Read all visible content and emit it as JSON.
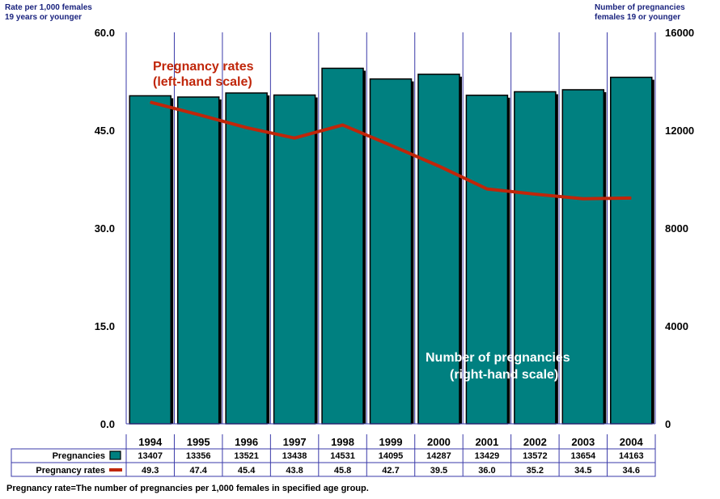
{
  "chart_data": {
    "type": "bar",
    "categories": [
      "1994",
      "1995",
      "1996",
      "1997",
      "1998",
      "1999",
      "2000",
      "2001",
      "2002",
      "2003",
      "2004"
    ],
    "series": [
      {
        "name": "Pregnancies",
        "type": "bar",
        "axis": "right",
        "values": [
          13407,
          13356,
          13521,
          13438,
          14531,
          14095,
          14287,
          13429,
          13572,
          13654,
          14163
        ],
        "color": "#008080"
      },
      {
        "name": "Pregnancy rates",
        "type": "line",
        "axis": "left",
        "values": [
          49.3,
          47.4,
          45.4,
          43.8,
          45.8,
          42.7,
          39.5,
          36.0,
          35.2,
          34.5,
          34.6
        ],
        "color": "#c0260a"
      }
    ],
    "left_axis": {
      "title_line1": "Rate per 1,000 females",
      "title_line2": "19 years or younger",
      "ylim": [
        0,
        60
      ],
      "ticks": [
        "0.0",
        "15.0",
        "30.0",
        "45.0",
        "60.0"
      ],
      "tick_values": [
        0,
        15,
        30,
        45,
        60
      ]
    },
    "right_axis": {
      "title_line1": "Number of pregnancies",
      "title_line2": "females 19 or younger",
      "ylim": [
        0,
        16000
      ],
      "ticks": [
        "0",
        "4000",
        "8000",
        "12000",
        "16000"
      ],
      "tick_values": [
        0,
        4000,
        8000,
        12000,
        16000
      ]
    },
    "annotations": {
      "rates_line1": "Pregnancy rates",
      "rates_line2": "(left-hand scale)",
      "preg_line1": "Number of pregnancies",
      "preg_line2": "(right-hand scale)"
    },
    "table": {
      "row1_label": "Pregnancies",
      "row2_label": "Pregnancy rates",
      "row1": [
        "13407",
        "13356",
        "13521",
        "13438",
        "14531",
        "14095",
        "14287",
        "13429",
        "13572",
        "13654",
        "14163"
      ],
      "row2": [
        "49.3",
        "47.4",
        "45.4",
        "43.8",
        "45.8",
        "42.7",
        "39.5",
        "36.0",
        "35.2",
        "34.5",
        "34.6"
      ]
    },
    "footnote": "Pregnancy rate=The number of pregnancies per 1,000 females in specified age group.",
    "grid": true,
    "legend": "data-table"
  }
}
